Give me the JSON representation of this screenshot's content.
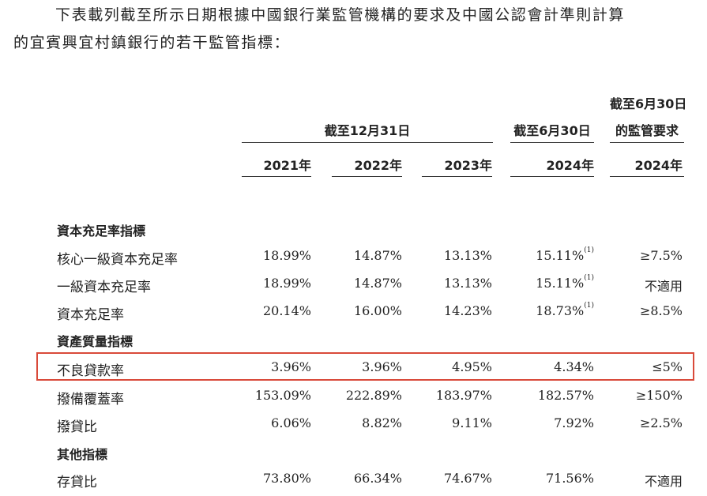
{
  "intro": {
    "line1": "下表載列截至所示日期根據中國銀行業監管機構的要求及中國公認會計準則計算",
    "line2": "的宜賓興宜村鎮銀行的若干監管指標："
  },
  "header": {
    "group1": "截至12月31日",
    "group2": "截至6月30日",
    "group3_line1": "截至6月30日",
    "group3_line2": "的監管要求",
    "years": [
      "2021年",
      "2022年",
      "2023年",
      "2024年",
      "2024年"
    ]
  },
  "rows": [
    {
      "label": "資本充足率指標",
      "section": true
    },
    {
      "label": "核心一級資本充足率",
      "values": [
        "18.99%",
        "14.87%",
        "13.13%",
        "15.11%",
        "≥7.5%"
      ],
      "note4": "(1)"
    },
    {
      "label": "一級資本充足率",
      "values": [
        "18.99%",
        "14.87%",
        "13.13%",
        "15.11%",
        "不適用"
      ],
      "note4": "(1)"
    },
    {
      "label": "資本充足率",
      "values": [
        "20.14%",
        "16.00%",
        "14.23%",
        "18.73%",
        "≥8.5%"
      ],
      "note4": "(1)"
    },
    {
      "label": "資產質量指標",
      "section": true
    },
    {
      "label": "不良貸款率",
      "values": [
        "3.96%",
        "3.96%",
        "4.95%",
        "4.34%",
        "≤5%"
      ],
      "highlighted": true
    },
    {
      "label": "撥備覆蓋率",
      "values": [
        "153.09%",
        "222.89%",
        "183.97%",
        "182.57%",
        "≥150%"
      ]
    },
    {
      "label": "撥貸比",
      "values": [
        "6.06%",
        "8.82%",
        "9.11%",
        "7.92%",
        "≥2.5%"
      ]
    },
    {
      "label": "其他指標",
      "section": true
    },
    {
      "label": "存貸比",
      "values": [
        "73.80%",
        "66.34%",
        "74.67%",
        "71.56%",
        "不適用"
      ]
    }
  ],
  "colors": {
    "highlight_border": "#d94a3a"
  }
}
